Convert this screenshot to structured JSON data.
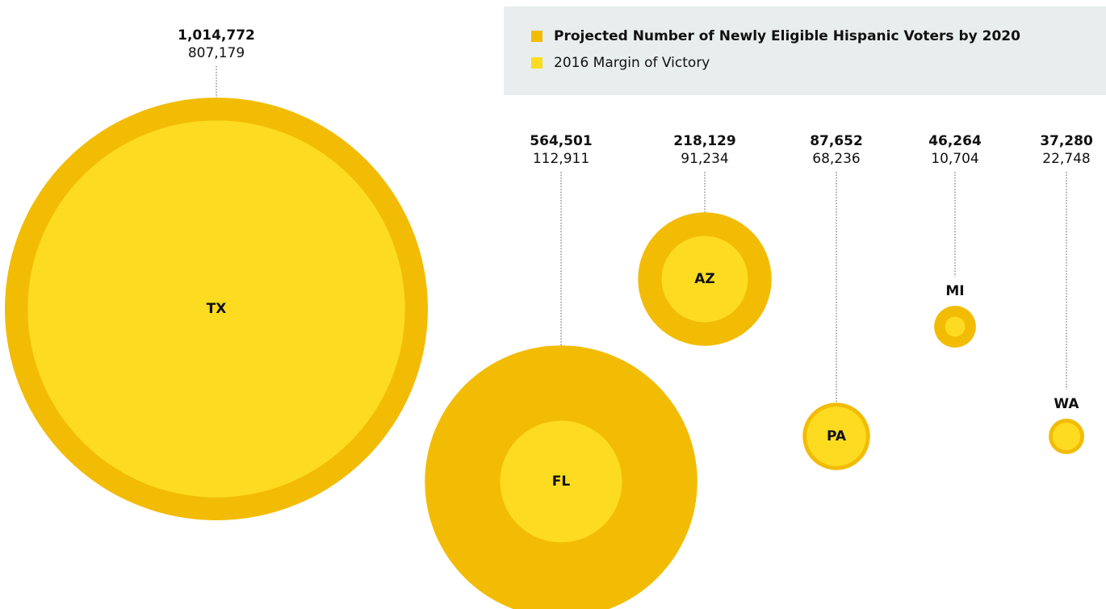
{
  "chart_data": {
    "type": "bubble",
    "categories": [
      "TX",
      "FL",
      "AZ",
      "PA",
      "MI",
      "WA"
    ],
    "series": [
      {
        "name": "Projected Number of Newly Eligible Hispanic Voters by 2020",
        "color": "#f2bc05",
        "values": [
          1014772,
          564501,
          218129,
          87652,
          46264,
          37280
        ],
        "value_labels": [
          "1,014,772",
          "564,501",
          "218,129",
          "87,652",
          "46,264",
          "37,280"
        ]
      },
      {
        "name": "2016 Margin of Victory",
        "color": "#fddb20",
        "values": [
          807179,
          112911,
          91234,
          68236,
          10704,
          22748
        ],
        "value_labels": [
          "807,179",
          "112,911",
          "91,234",
          "68,236",
          "10,704",
          "22,748"
        ]
      }
    ]
  }
}
